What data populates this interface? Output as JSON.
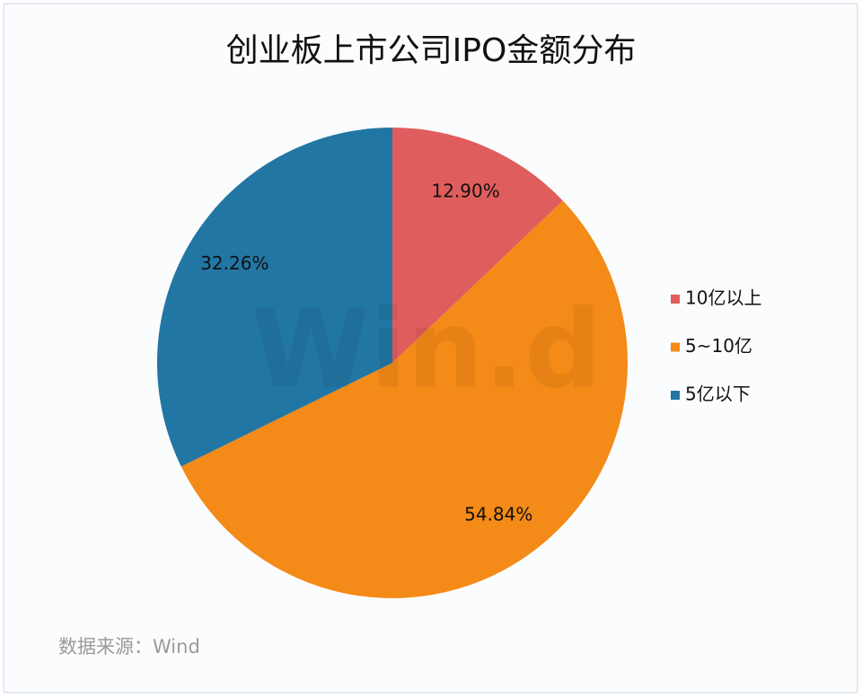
{
  "chart_data": {
    "type": "pie",
    "title": "创业板上市公司IPO金额分布",
    "categories": [
      "10亿以上",
      "5~10亿",
      "5亿以下"
    ],
    "values": [
      12.9,
      54.84,
      32.26
    ],
    "value_labels": [
      "12.90%",
      "54.84%",
      "32.26%"
    ],
    "colors": [
      "#e05d5d",
      "#f48a17",
      "#2276a3"
    ],
    "legend": "right",
    "watermark": "Win.d",
    "source": "数据来源：Wind"
  }
}
